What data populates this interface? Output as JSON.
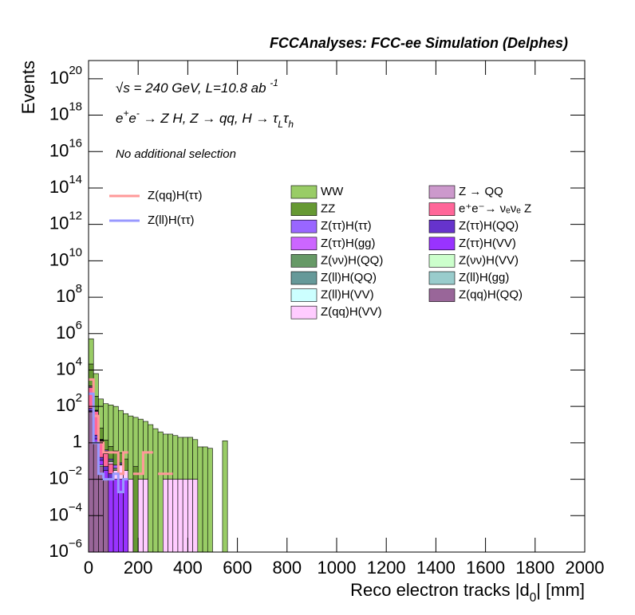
{
  "chart_data": {
    "type": "stacked-histogram",
    "title": "FCCAnalyses: FCC-ee Simulation (Delphes)",
    "annotations": [
      [
        {
          "text": "√s = 240 GeV, L=10.8 ab "
        },
        {
          "sup": "-1"
        }
      ],
      [
        {
          "text": "e"
        },
        {
          "sup": "+"
        },
        {
          "text": "e"
        },
        {
          "sup": "-"
        },
        {
          "text": " → Z H, Z  → qq, H  → τ"
        },
        {
          "sub": "L"
        },
        {
          "text": "τ"
        },
        {
          "sub": "h"
        }
      ],
      [
        {
          "text": "No additional selection"
        }
      ]
    ],
    "ylabel": "Events",
    "xlabel": [
      {
        "text": "Reco electron tracks |d"
      },
      {
        "sub": "0"
      },
      {
        "text": "| [mm]"
      }
    ],
    "log_y": true,
    "stacked": true,
    "xlim": [
      0,
      2000
    ],
    "xticks": [
      0,
      200,
      400,
      600,
      800,
      1000,
      1200,
      1400,
      1600,
      1800,
      2000
    ],
    "ylim": [
      1e-06,
      1e+21
    ],
    "yticks": [
      {
        "value": 1e-06,
        "label": "10",
        "exponent": "−6"
      },
      {
        "value": 0.0001,
        "label": "10",
        "exponent": "−4"
      },
      {
        "value": 0.01,
        "label": "10",
        "exponent": "−2"
      },
      1,
      {
        "value": 100.0,
        "label": "10",
        "exponent": "2"
      },
      {
        "value": 10000.0,
        "label": "10",
        "exponent": "4"
      },
      {
        "value": 1000000.0,
        "label": "10",
        "exponent": "6"
      },
      {
        "value": 100000000.0,
        "label": "10",
        "exponent": "8"
      },
      {
        "value": 10000000000.0,
        "label": "10",
        "exponent": "10"
      },
      {
        "value": 1000000000000.0,
        "label": "10",
        "exponent": "12"
      },
      {
        "value": 100000000000000.0,
        "label": "10",
        "exponent": "14"
      },
      {
        "value": 1e+16,
        "label": "10",
        "exponent": "16"
      },
      {
        "value": 1e+18,
        "label": "10",
        "exponent": "18"
      },
      {
        "value": 1e+20,
        "label": "10",
        "exponent": "20"
      }
    ],
    "bins": [
      0,
      20,
      40,
      60,
      80,
      100,
      120,
      140,
      160,
      180,
      200,
      220,
      240,
      260,
      280,
      300,
      320,
      340,
      360,
      380,
      400,
      420,
      440,
      460,
      480,
      500,
      520,
      540,
      560,
      580,
      600
    ],
    "series": [
      {
        "name": "WW",
        "color": "#99cc66",
        "values": [
          500000,
          6000,
          250,
          140,
          120,
          100,
          60,
          40,
          30,
          25,
          20,
          15,
          10,
          6,
          4,
          3,
          3,
          2.5,
          2,
          2,
          2,
          1.5,
          0.6,
          0.6,
          0.5,
          null,
          null,
          1.3,
          null,
          null
        ]
      },
      {
        "name": "ZZ",
        "color": "#669933",
        "values": [
          20000,
          300,
          5,
          1,
          0.5,
          0.3,
          0.2,
          0.1,
          null,
          0.05,
          null,
          null,
          null,
          null,
          null,
          null,
          null,
          null,
          null,
          null,
          null,
          null,
          null,
          null,
          null,
          null,
          null,
          null,
          null,
          null
        ]
      },
      {
        "name": "Z(ττ)H(ττ)",
        "color": "#9966ff",
        "values": [
          30,
          2,
          0.1,
          0.05,
          0.02,
          0.02,
          0.01,
          null,
          null,
          null,
          null,
          null,
          null,
          null,
          null,
          null,
          null,
          null,
          null,
          null,
          null,
          null,
          null,
          null,
          null,
          null,
          null,
          null,
          null,
          null
        ]
      },
      {
        "name": "Z(ττ)H(gg)",
        "color": "#cc66ff",
        "values": [
          5,
          0.5,
          0.02,
          0.01,
          null,
          null,
          null,
          null,
          null,
          null,
          null,
          null,
          null,
          null,
          null,
          null,
          null,
          null,
          null,
          null,
          null,
          null,
          null,
          null,
          null,
          null,
          null,
          null,
          null,
          null
        ]
      },
      {
        "name": "Z(νν)H(QQ)",
        "color": "#669966",
        "values": [
          10,
          0.5,
          0.05,
          0.02,
          0.02,
          0.01,
          0.01,
          null,
          null,
          null,
          null,
          null,
          null,
          null,
          null,
          null,
          null,
          null,
          null,
          null,
          null,
          null,
          null,
          null,
          null,
          null,
          null,
          null,
          null,
          null
        ]
      },
      {
        "name": "Z(ll)H(QQ)",
        "color": "#669999",
        "values": [
          8,
          0.3,
          0.02,
          0.01,
          null,
          null,
          null,
          null,
          null,
          null,
          null,
          null,
          null,
          null,
          null,
          null,
          null,
          null,
          null,
          null,
          null,
          null,
          null,
          null,
          null,
          null,
          null,
          null,
          null,
          null
        ]
      },
      {
        "name": "Z(ll)H(VV)",
        "color": "#ccffff",
        "values": [
          1,
          0.05,
          0.01,
          null,
          null,
          null,
          null,
          null,
          null,
          null,
          null,
          null,
          null,
          null,
          null,
          null,
          null,
          null,
          null,
          null,
          null,
          null,
          null,
          null,
          null,
          null,
          null,
          null,
          null,
          null
        ]
      },
      {
        "name": "Z(qq)H(VV)",
        "color": "#ffccff",
        "values": [
          5,
          1,
          0.1,
          0.05,
          0.02,
          0.02,
          0.05,
          0.02,
          0.01,
          null,
          0.01,
          0.01,
          null,
          null,
          null,
          0.01,
          0.01,
          0.01,
          0.01,
          0.01,
          0.01,
          0.01,
          null,
          null,
          null,
          null,
          null,
          null,
          null,
          null
        ]
      },
      {
        "name": "Z → QQ",
        "color": "#cc99cc",
        "values": [
          200,
          5,
          0.1,
          0.02,
          null,
          null,
          null,
          null,
          null,
          null,
          null,
          null,
          null,
          null,
          null,
          null,
          null,
          null,
          null,
          null,
          null,
          null,
          null,
          null,
          null,
          null,
          null,
          null,
          null,
          null
        ]
      },
      {
        "name": "e⁺e⁻→ νₑνₑ Z",
        "color": "#ff6699",
        "values": [
          1000,
          50,
          1,
          0.2,
          0.05,
          null,
          null,
          null,
          null,
          null,
          null,
          null,
          null,
          null,
          null,
          null,
          null,
          null,
          null,
          null,
          null,
          null,
          null,
          null,
          null,
          null,
          null,
          null,
          null,
          null
        ]
      },
      {
        "name": "Z(ττ)H(QQ)",
        "color": "#6633cc",
        "values": [
          20,
          1,
          0.05,
          0.02,
          0.01,
          null,
          null,
          null,
          null,
          null,
          null,
          null,
          null,
          null,
          null,
          null,
          null,
          null,
          null,
          null,
          null,
          null,
          null,
          null,
          null,
          null,
          null,
          null,
          null,
          null
        ]
      },
      {
        "name": "Z(ττ)H(VV)",
        "color": "#9933ff",
        "values": [
          5,
          0.5,
          0.05,
          0.02,
          0.01,
          0.01,
          0.01,
          0.01,
          null,
          null,
          null,
          null,
          null,
          null,
          null,
          null,
          null,
          null,
          null,
          null,
          null,
          null,
          null,
          null,
          null,
          null,
          null,
          null,
          null,
          null
        ]
      },
      {
        "name": "Z(νν)H(VV)",
        "color": "#ccffcc",
        "values": [
          2,
          0.1,
          0.01,
          null,
          null,
          null,
          null,
          null,
          null,
          null,
          null,
          null,
          null,
          null,
          null,
          null,
          null,
          null,
          null,
          null,
          null,
          null,
          null,
          null,
          null,
          null,
          null,
          null,
          null,
          null
        ]
      },
      {
        "name": "Z(ll)H(gg)",
        "color": "#99cccc",
        "values": [
          1,
          0.05,
          null,
          null,
          null,
          null,
          null,
          null,
          null,
          null,
          null,
          null,
          null,
          null,
          null,
          null,
          null,
          null,
          null,
          null,
          null,
          null,
          null,
          null,
          null,
          null,
          null,
          null,
          null,
          null
        ]
      },
      {
        "name": "Z(qq)H(QQ)",
        "color": "#996699",
        "values": [
          50,
          1,
          0.05,
          0.01,
          null,
          null,
          null,
          null,
          null,
          null,
          null,
          null,
          null,
          null,
          null,
          null,
          null,
          null,
          null,
          null,
          null,
          null,
          null,
          null,
          null,
          null,
          null,
          null,
          null,
          null
        ]
      }
    ],
    "signals": [
      {
        "name": "Z(qq)H(ττ)",
        "color": "#ff9999",
        "values": [
          3000,
          30,
          1,
          0.3,
          0.3,
          0.3,
          0.02,
          0.3,
          null,
          0.02,
          0.02,
          0.3,
          0.3,
          null,
          0.02,
          0.02,
          0.02,
          null,
          null,
          null,
          null,
          null,
          null,
          null,
          null,
          null,
          null,
          null,
          null,
          null
        ]
      },
      {
        "name": "Z(ll)H(ττ)",
        "color": "#9999ff",
        "values": [
          500,
          1,
          0.02,
          0.01,
          0.01,
          0.02,
          0.002,
          0.01,
          null,
          null,
          null,
          null,
          null,
          null,
          null,
          null,
          null,
          null,
          null,
          null,
          null,
          null,
          null,
          null,
          null,
          null,
          null,
          null,
          null,
          null
        ]
      }
    ]
  }
}
